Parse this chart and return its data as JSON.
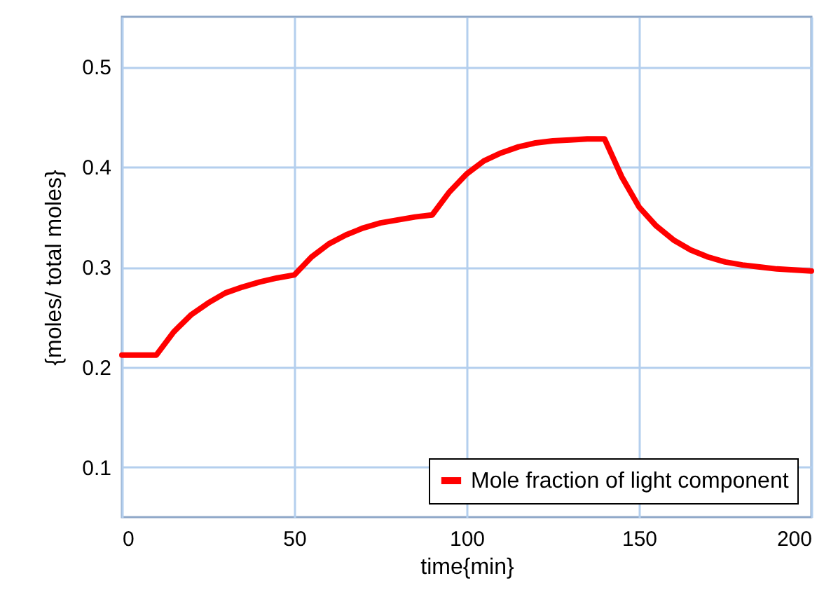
{
  "chart_data": {
    "type": "line",
    "xlabel": "time{min}",
    "ylabel": "{moles/ total moles}",
    "x": [
      0,
      10,
      15,
      20,
      25,
      30,
      35,
      40,
      45,
      50,
      55,
      60,
      65,
      70,
      75,
      80,
      85,
      90,
      95,
      100,
      105,
      110,
      115,
      120,
      125,
      130,
      135,
      140,
      145,
      150,
      155,
      160,
      165,
      170,
      175,
      180,
      185,
      190,
      200
    ],
    "series": [
      {
        "name": "Mole fraction of light component",
        "color": "#ff0000",
        "values": [
          0.212,
          0.212,
          0.235,
          0.252,
          0.264,
          0.274,
          0.28,
          0.285,
          0.289,
          0.292,
          0.31,
          0.323,
          0.332,
          0.339,
          0.344,
          0.347,
          0.35,
          0.352,
          0.375,
          0.393,
          0.406,
          0.414,
          0.42,
          0.424,
          0.426,
          0.427,
          0.428,
          0.428,
          0.39,
          0.36,
          0.341,
          0.327,
          0.317,
          0.31,
          0.305,
          0.302,
          0.3,
          0.298,
          0.296
        ]
      }
    ],
    "xlim": [
      0,
      200
    ],
    "xticks": [
      0,
      50,
      100,
      150,
      200
    ],
    "ylim": [
      0.05,
      0.55
    ],
    "yticks": [
      0.1,
      0.2,
      0.3,
      0.4,
      0.5
    ],
    "grid": true,
    "legend": "bottom right",
    "marker": "none",
    "line_style": "solid"
  }
}
